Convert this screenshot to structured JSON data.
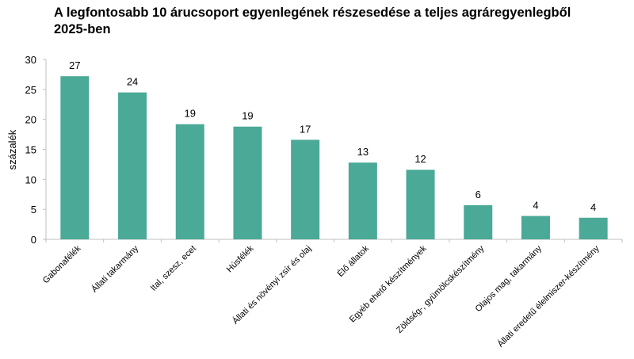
{
  "chart_data": {
    "type": "bar",
    "title_line1": "A legfontosabb 10 árucsoport egyenlegének részesedése a teljes agráregyenlegből",
    "title_line2": "2025-ben",
    "xlabel": "",
    "ylabel": "százalék",
    "ylim": [
      0,
      30
    ],
    "yticks": [
      0,
      5,
      10,
      15,
      20,
      25,
      30
    ],
    "grid": false,
    "categories": [
      "Gabonafélék",
      "Állati takarmány",
      "Ital, szesz, ecet",
      "Húsfélék",
      "Állati és növényi zsír és olaj",
      "Élő állatok",
      "Egyéb ehető készítmények",
      "Zöldség-, gyümölcskészítmény",
      "Olajos mag, takarmány",
      "Állati eredetű élelmiszer-készítmény"
    ],
    "values": [
      27.2,
      24.5,
      19.2,
      18.8,
      16.6,
      12.8,
      11.6,
      5.7,
      3.9,
      3.6
    ],
    "data_labels": [
      "27",
      "24",
      "19",
      "19",
      "17",
      "13",
      "12",
      "6",
      "4",
      "4"
    ],
    "bar_color": "#4aa997"
  }
}
